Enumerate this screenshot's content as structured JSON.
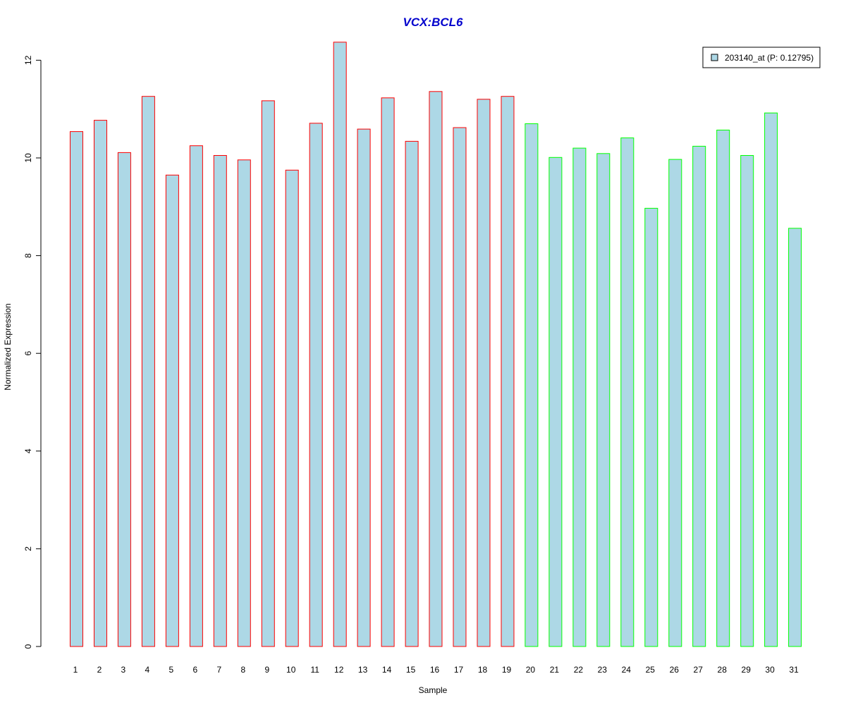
{
  "chart_data": {
    "type": "bar",
    "title": "VCX:BCL6",
    "xlabel": "Sample",
    "ylabel": "Normalized Expression",
    "ylim": [
      0,
      12.4
    ],
    "yticks": [
      0,
      2,
      4,
      6,
      8,
      10,
      12
    ],
    "categories": [
      "1",
      "2",
      "3",
      "4",
      "5",
      "6",
      "7",
      "8",
      "9",
      "10",
      "11",
      "12",
      "13",
      "14",
      "15",
      "16",
      "17",
      "18",
      "19",
      "20",
      "21",
      "22",
      "23",
      "24",
      "25",
      "26",
      "27",
      "28",
      "29",
      "30",
      "31"
    ],
    "series": [
      {
        "name": "203140_at (P: 0.12795)",
        "values": [
          10.54,
          10.77,
          10.11,
          11.26,
          9.65,
          10.25,
          10.05,
          9.96,
          11.17,
          9.75,
          10.71,
          12.37,
          10.59,
          11.23,
          10.34,
          11.36,
          10.62,
          11.2,
          11.26,
          10.7,
          10.01,
          10.2,
          10.09,
          10.41,
          8.97,
          9.97,
          10.24,
          10.57,
          10.05,
          10.92,
          8.56
        ],
        "group": [
          "red",
          "red",
          "red",
          "red",
          "red",
          "red",
          "red",
          "red",
          "red",
          "red",
          "red",
          "red",
          "red",
          "red",
          "red",
          "red",
          "red",
          "red",
          "red",
          "green",
          "green",
          "green",
          "green",
          "green",
          "green",
          "green",
          "green",
          "green",
          "green",
          "green",
          "green"
        ]
      }
    ],
    "colors": {
      "fill": "#ADD8E6",
      "red": "#FF0000",
      "green": "#00FF00",
      "title": "#0000CD"
    },
    "legend": {
      "position": "top-right",
      "label": "203140_at (P: 0.12795)"
    },
    "grid": false
  }
}
